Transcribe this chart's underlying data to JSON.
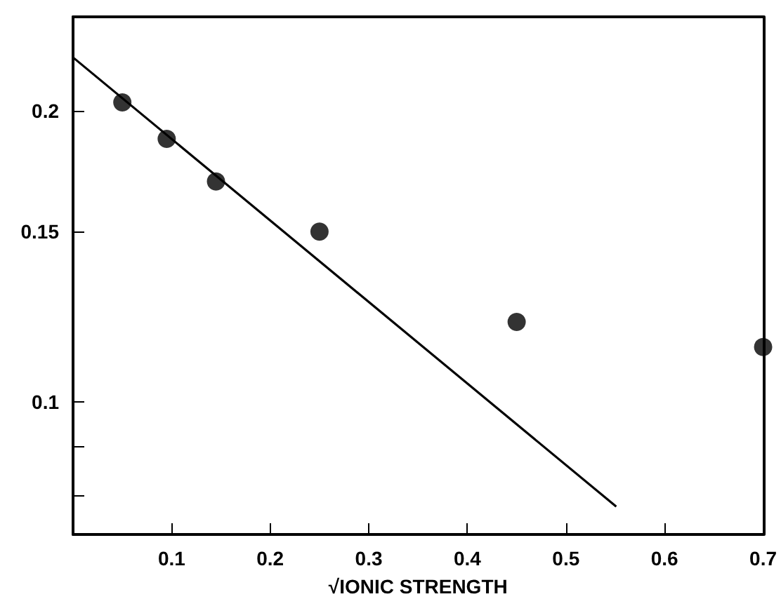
{
  "chart_data": {
    "type": "scatter",
    "xlabel": "√IONIC STRENGTH",
    "log": "y",
    "grid": false,
    "series": [
      {
        "color": "#000000",
        "marker": "circle",
        "x": [
          0.05,
          0.095,
          0.145,
          0.25,
          0.45,
          0.7
        ],
        "values": [
          0.204,
          0.187,
          0.169,
          0.15,
          0.121,
          0.114
        ]
      },
      {
        "type": "line",
        "color": "#000000",
        "marker": "none",
        "line_style": "solid",
        "x": [
          0,
          0.551
        ],
        "values": [
          0.227,
          0.078
        ]
      }
    ],
    "xlim": [
      0,
      0.7
    ],
    "xticks": [
      0.1,
      0.2,
      0.3,
      0.4,
      0.5,
      0.6,
      0.7
    ],
    "ylim": [
      0.073,
      0.25
    ],
    "yticks": [
      {
        "value": 0.08,
        "label": null
      },
      {
        "value": 0.09,
        "label": null
      },
      0.1,
      0.15,
      0.2
    ]
  }
}
